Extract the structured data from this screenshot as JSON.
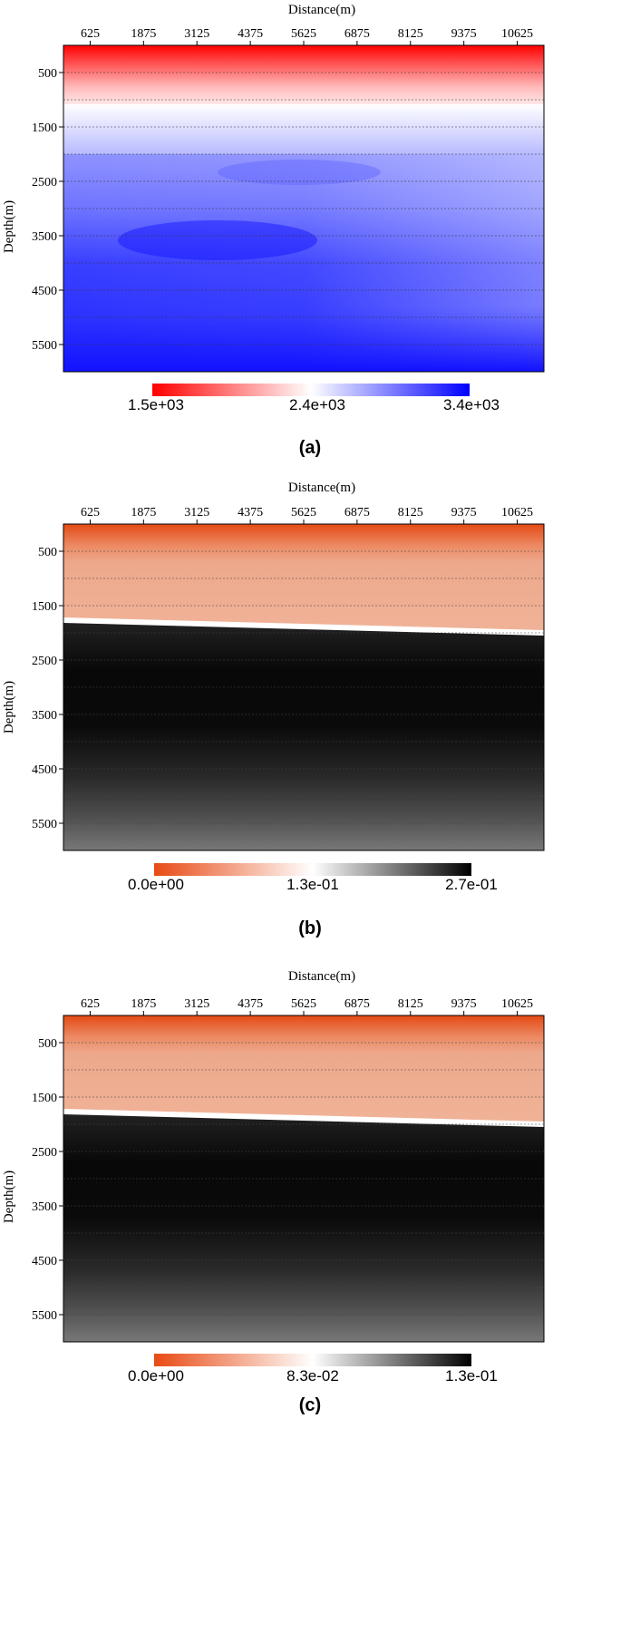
{
  "chart_data": [
    {
      "type": "heatmap",
      "panel_label": "(a)",
      "xlabel": "Distance(m)",
      "ylabel": "Depth(m)",
      "x_ticks": [
        625,
        1875,
        3125,
        4375,
        5625,
        6875,
        8125,
        9375,
        10625
      ],
      "y_ticks": [
        500,
        1500,
        2500,
        3500,
        4500,
        5500
      ],
      "xlim": [
        0,
        11250
      ],
      "ylim": [
        0,
        6000
      ],
      "colorbar": {
        "labels": [
          "1.5e+03",
          "2.4e+03",
          "3.4e+03"
        ],
        "min": 1500,
        "max": 3400,
        "colors": [
          "#ff0000",
          "#ffffff",
          "#0000ff"
        ]
      },
      "layers": [
        {
          "depth_from": 0,
          "depth_to": 1000,
          "value": "1.5e+03 to 2.4e+03 (increasing with depth)"
        },
        {
          "depth_from": 1000,
          "depth_to": 1150,
          "value": "2.4e+03"
        },
        {
          "depth_from": 1150,
          "depth_to": 6000,
          "value": "2.8e+03 to 3.4e+03 (higher left and deep)"
        }
      ],
      "grid": true
    },
    {
      "type": "heatmap",
      "panel_label": "(b)",
      "xlabel": "Distance(m)",
      "ylabel": "Depth(m)",
      "x_ticks": [
        625,
        1875,
        3125,
        4375,
        5625,
        6875,
        8125,
        9375,
        10625
      ],
      "y_ticks": [
        500,
        1500,
        2500,
        3500,
        4500,
        5500
      ],
      "xlim": [
        0,
        11250
      ],
      "ylim": [
        0,
        6000
      ],
      "colorbar": {
        "labels": [
          "0.0e+00",
          "1.3e-01",
          "2.7e-01"
        ],
        "min": 0,
        "max": 0.27,
        "colors": [
          "#e84a14",
          "#ffffff",
          "#000000"
        ]
      },
      "interface_depth_left_right": [
        1800,
        2000
      ],
      "grid": true
    },
    {
      "type": "heatmap",
      "panel_label": "(c)",
      "xlabel": "Distance(m)",
      "ylabel": "Depth(m)",
      "x_ticks": [
        625,
        1875,
        3125,
        4375,
        5625,
        6875,
        8125,
        9375,
        10625
      ],
      "y_ticks": [
        500,
        1500,
        2500,
        3500,
        4500,
        5500
      ],
      "xlim": [
        0,
        11250
      ],
      "ylim": [
        0,
        6000
      ],
      "colorbar": {
        "labels": [
          "0.0e+00",
          "8.3e-02",
          "1.3e-01"
        ],
        "min": 0,
        "max": 0.13,
        "colors": [
          "#e84a14",
          "#ffffff",
          "#000000"
        ]
      },
      "interface_depth_left_right": [
        1800,
        2000
      ],
      "grid": true
    }
  ]
}
